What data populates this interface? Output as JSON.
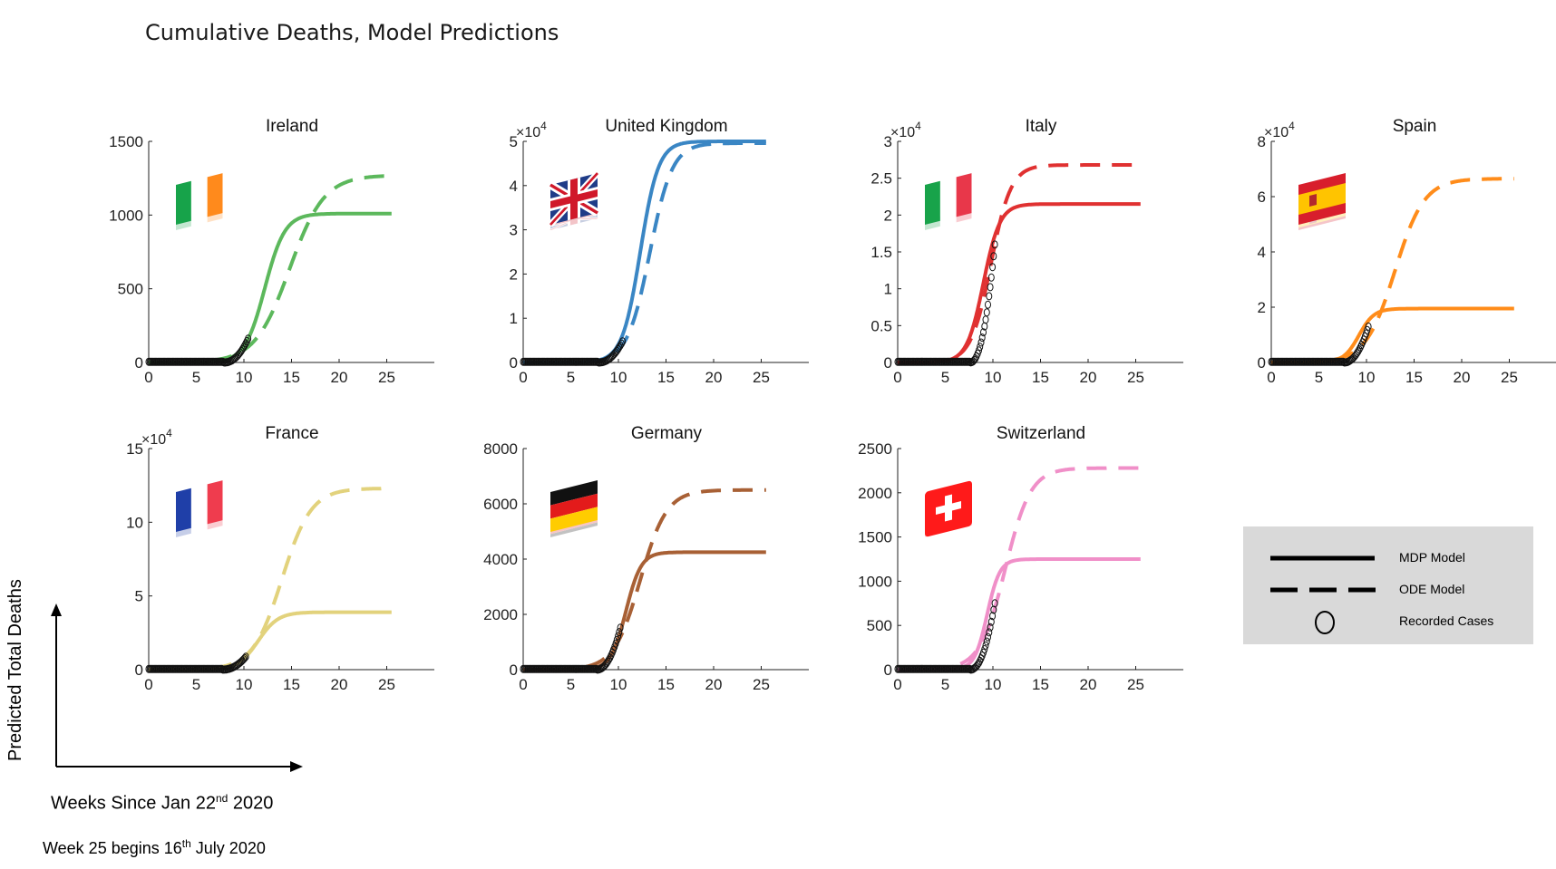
{
  "title": "Cumulative Deaths, Model Predictions",
  "axis_labels": {
    "y": "Predicted Total Deaths",
    "x_prefix": "Weeks Since Jan 22",
    "x_sup": "nd",
    "x_suffix": " 2020",
    "note_prefix": "Week 25 begins 16",
    "note_sup": "th",
    "note_suffix": " July 2020"
  },
  "legend": {
    "items": [
      {
        "label": "MDP Model",
        "style": "solid"
      },
      {
        "label": "ODE Model",
        "style": "dashed"
      },
      {
        "label": "Recorded Cases",
        "style": "circle"
      }
    ]
  },
  "chart_data": [
    {
      "type": "line",
      "title": "Ireland",
      "color": "#5cb85c",
      "xlim": [
        0,
        30
      ],
      "ylim": [
        0,
        1500
      ],
      "yticks": [
        0,
        500,
        1000,
        1500
      ],
      "ytick_labels": [
        "0",
        "500",
        "1000",
        "1500"
      ],
      "xticks": [
        0,
        5,
        10,
        15,
        20,
        25
      ],
      "exponent_label": "",
      "flag": "ireland",
      "mdp": {
        "plateau": 1010,
        "mid": 12.2,
        "rate": 0.95
      },
      "ode": {
        "plateau": 1270,
        "mid": 14.8,
        "rate": 0.55
      },
      "recorded": {
        "last_week": 10.5,
        "last_value": 170
      }
    },
    {
      "type": "line",
      "title": "United Kingdom",
      "color": "#3a86c4",
      "xlim": [
        0,
        30
      ],
      "ylim": [
        0,
        50000
      ],
      "yticks": [
        0,
        10000,
        20000,
        30000,
        40000,
        50000
      ],
      "ytick_labels": [
        "0",
        "1",
        "2",
        "3",
        "4",
        "5"
      ],
      "xticks": [
        0,
        5,
        10,
        15,
        20,
        25
      ],
      "exponent_label": "10",
      "flag": "uk",
      "mdp": {
        "plateau": 50000,
        "mid": 12.3,
        "rate": 1.05
      },
      "ode": {
        "plateau": 49600,
        "mid": 13.3,
        "rate": 0.85
      },
      "recorded": {
        "last_week": 10.5,
        "last_value": 5000
      }
    },
    {
      "type": "line",
      "title": "Italy",
      "color": "#e03131",
      "xlim": [
        0,
        30
      ],
      "ylim": [
        0,
        30000
      ],
      "yticks": [
        0,
        5000,
        10000,
        15000,
        20000,
        25000,
        30000
      ],
      "ytick_labels": [
        "0",
        "0.5",
        "1",
        "1.5",
        "2",
        "2.5",
        "3"
      ],
      "xticks": [
        0,
        5,
        10,
        15,
        20,
        25
      ],
      "exponent_label": "10",
      "flag": "italy",
      "mdp": {
        "plateau": 21500,
        "mid": 9.0,
        "rate": 1.15
      },
      "ode": {
        "plateau": 26800,
        "mid": 9.8,
        "rate": 0.95
      },
      "recorded": {
        "last_week": 10.2,
        "last_value": 16000
      }
    },
    {
      "type": "line",
      "title": "Spain",
      "color": "#ff8c1a",
      "xlim": [
        0,
        30
      ],
      "ylim": [
        0,
        80000
      ],
      "yticks": [
        0,
        20000,
        40000,
        60000,
        80000
      ],
      "ytick_labels": [
        "0",
        "2",
        "4",
        "6",
        "8"
      ],
      "xticks": [
        0,
        5,
        10,
        15,
        20,
        25
      ],
      "exponent_label": "10",
      "flag": "spain",
      "mdp": {
        "plateau": 19500,
        "mid": 9.2,
        "rate": 1.25
      },
      "ode": {
        "plateau": 66500,
        "mid": 13.0,
        "rate": 0.65
      },
      "recorded": {
        "last_week": 10.2,
        "last_value": 13000
      }
    },
    {
      "type": "line",
      "title": "France",
      "color": "#e2d27c",
      "xlim": [
        0,
        30
      ],
      "ylim": [
        0,
        150000
      ],
      "yticks": [
        0,
        50000,
        100000,
        150000
      ],
      "ytick_labels": [
        "0",
        "5",
        "10",
        "15"
      ],
      "xticks": [
        0,
        5,
        10,
        15,
        20,
        25
      ],
      "exponent_label": "10",
      "flag": "france",
      "mdp": {
        "plateau": 39000,
        "mid": 11.5,
        "rate": 0.95
      },
      "ode": {
        "plateau": 123000,
        "mid": 14.0,
        "rate": 0.65
      },
      "recorded": {
        "last_week": 10.3,
        "last_value": 9500
      }
    },
    {
      "type": "line",
      "title": "Germany",
      "color": "#a86035",
      "xlim": [
        0,
        30
      ],
      "ylim": [
        0,
        8000
      ],
      "yticks": [
        0,
        2000,
        4000,
        6000,
        8000
      ],
      "ytick_labels": [
        "0",
        "2000",
        "4000",
        "6000",
        "8000"
      ],
      "xticks": [
        0,
        5,
        10,
        15,
        20,
        25
      ],
      "exponent_label": "",
      "flag": "germany",
      "mdp": {
        "plateau": 4250,
        "mid": 10.8,
        "rate": 1.25
      },
      "ode": {
        "plateau": 6500,
        "mid": 12.3,
        "rate": 0.72
      },
      "recorded": {
        "last_week": 10.3,
        "last_value": 1650
      }
    },
    {
      "type": "line",
      "title": "Switzerland",
      "color": "#f08fc8",
      "xlim": [
        0,
        30
      ],
      "ylim": [
        0,
        2500
      ],
      "yticks": [
        0,
        500,
        1000,
        1500,
        2000,
        2500
      ],
      "ytick_labels": [
        "0",
        "500",
        "1000",
        "1500",
        "2000",
        "2500"
      ],
      "xticks": [
        0,
        5,
        10,
        15,
        20,
        25
      ],
      "exponent_label": "",
      "flag": "switzerland",
      "mdp": {
        "plateau": 1250,
        "mid": 9.4,
        "rate": 1.5
      },
      "ode": {
        "plateau": 2280,
        "mid": 11.3,
        "rate": 0.75
      },
      "recorded": {
        "last_week": 10.2,
        "last_value": 750
      }
    }
  ]
}
